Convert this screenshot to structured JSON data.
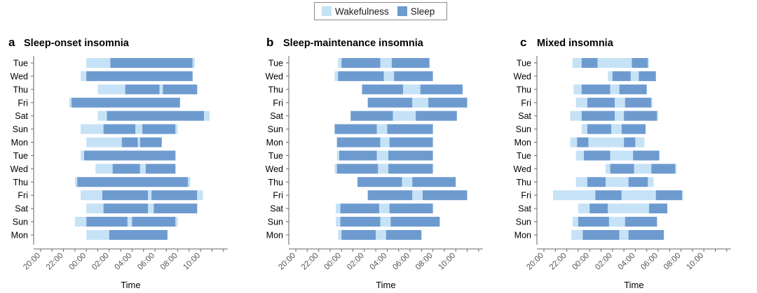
{
  "legend": {
    "items": [
      {
        "label": "Wakefulness",
        "color": "#c6e2f6"
      },
      {
        "label": "Sleep",
        "color": "#6e9bcf"
      }
    ]
  },
  "colors": {
    "wake": "#c6e2f6",
    "sleep": "#6e9bcf",
    "axis": "#666666"
  },
  "chart_data": [
    {
      "type": "gantt",
      "letter": "a",
      "title": "Sleep-onset insomnia",
      "xlabel": "Time",
      "days": [
        "Tue",
        "Wed",
        "Thu",
        "Fri",
        "Sat",
        "Sun",
        "Mon",
        "Tue",
        "Wed",
        "Thu",
        "Fri",
        "Sat",
        "Sun",
        "Mon"
      ],
      "xticks": [
        "20:00",
        "22:00",
        "00:00",
        "02:00",
        "04:00",
        "06:00",
        "08:00",
        "10:00"
      ],
      "xrange_hours": [
        -4,
        12
      ],
      "rows": [
        [
          [
            "w",
            0.0,
            2.1
          ],
          [
            "s",
            2.1,
            9.3
          ],
          [
            "w",
            9.3,
            9.5
          ]
        ],
        [
          [
            "w",
            -0.5,
            0.0
          ],
          [
            "s",
            0.0,
            9.3
          ]
        ],
        [
          [
            "w",
            1.0,
            3.4
          ],
          [
            "s",
            3.4,
            6.4
          ],
          [
            "w",
            6.4,
            6.7
          ],
          [
            "s",
            6.7,
            9.7
          ]
        ],
        [
          [
            "w",
            -1.5,
            -1.3
          ],
          [
            "s",
            -1.3,
            8.2
          ]
        ],
        [
          [
            "w",
            1.0,
            1.8
          ],
          [
            "s",
            1.8,
            10.3
          ],
          [
            "w",
            10.3,
            10.8
          ]
        ],
        [
          [
            "w",
            -0.5,
            1.5
          ],
          [
            "s",
            1.5,
            4.3
          ],
          [
            "w",
            4.3,
            4.9
          ],
          [
            "s",
            4.9,
            7.8
          ],
          [
            "w",
            7.8,
            8.0
          ]
        ],
        [
          [
            "w",
            0.0,
            3.1
          ],
          [
            "s",
            3.1,
            4.5
          ],
          [
            "w",
            4.5,
            4.7
          ],
          [
            "s",
            4.7,
            6.6
          ]
        ],
        [
          [
            "w",
            -0.5,
            -0.2
          ],
          [
            "s",
            -0.2,
            7.8
          ]
        ],
        [
          [
            "w",
            0.8,
            2.3
          ],
          [
            "s",
            2.3,
            4.7
          ],
          [
            "w",
            4.7,
            5.2
          ],
          [
            "s",
            5.2,
            7.8
          ]
        ],
        [
          [
            "w",
            -1.0,
            -0.8
          ],
          [
            "s",
            -0.8,
            8.9
          ],
          [
            "w",
            8.9,
            9.1
          ]
        ],
        [
          [
            "w",
            -0.5,
            1.4
          ],
          [
            "s",
            1.4,
            5.4
          ],
          [
            "w",
            5.4,
            5.7
          ],
          [
            "s",
            5.7,
            9.7
          ],
          [
            "w",
            9.7,
            10.2
          ]
        ],
        [
          [
            "w",
            0.0,
            1.5
          ],
          [
            "s",
            1.5,
            5.4
          ],
          [
            "w",
            5.4,
            5.9
          ],
          [
            "s",
            5.9,
            9.7
          ]
        ],
        [
          [
            "w",
            -1.0,
            0.0
          ],
          [
            "s",
            0.0,
            3.6
          ],
          [
            "w",
            3.6,
            4.0
          ],
          [
            "s",
            4.0,
            7.8
          ],
          [
            "w",
            7.8,
            8.0
          ]
        ],
        [
          [
            "w",
            0.0,
            2.0
          ],
          [
            "s",
            2.0,
            7.1
          ]
        ]
      ]
    },
    {
      "type": "gantt",
      "letter": "b",
      "title": "Sleep-maintenance insomnia",
      "xlabel": "Time",
      "days": [
        "Tue",
        "Wed",
        "Thu",
        "Fri",
        "Sat",
        "Sun",
        "Mon",
        "Tue",
        "Wed",
        "Thu",
        "Fri",
        "Sat",
        "Sun",
        "Mon"
      ],
      "xticks": [
        "20:00",
        "22:00",
        "00:00",
        "02:00",
        "04:00",
        "06:00",
        "08:00",
        "10:00"
      ],
      "xrange_hours": [
        -4,
        12
      ],
      "rows": [
        [
          [
            "w",
            -0.3,
            0.0
          ],
          [
            "s",
            0.0,
            3.4
          ],
          [
            "w",
            3.4,
            4.4
          ],
          [
            "s",
            4.4,
            7.7
          ]
        ],
        [
          [
            "w",
            -0.6,
            -0.3
          ],
          [
            "s",
            -0.3,
            3.7
          ],
          [
            "w",
            3.7,
            4.6
          ],
          [
            "s",
            4.6,
            8.0
          ]
        ],
        [
          [
            "s",
            1.8,
            5.4
          ],
          [
            "w",
            5.4,
            6.9
          ],
          [
            "s",
            6.9,
            10.6
          ]
        ],
        [
          [
            "s",
            2.3,
            6.2
          ],
          [
            "w",
            6.2,
            7.6
          ],
          [
            "s",
            7.6,
            11.0
          ]
        ],
        [
          [
            "s",
            0.8,
            4.5
          ],
          [
            "w",
            4.5,
            6.5
          ],
          [
            "s",
            6.5,
            10.1
          ]
        ],
        [
          [
            "s",
            -0.6,
            3.1
          ],
          [
            "w",
            3.1,
            4.0
          ],
          [
            "s",
            4.0,
            8.0
          ]
        ],
        [
          [
            "s",
            -0.4,
            3.4
          ],
          [
            "w",
            3.4,
            4.2
          ],
          [
            "s",
            4.2,
            8.0
          ]
        ],
        [
          [
            "w",
            -0.4,
            -0.2
          ],
          [
            "s",
            -0.2,
            3.1
          ],
          [
            "w",
            3.1,
            4.1
          ],
          [
            "s",
            4.1,
            8.0
          ]
        ],
        [
          [
            "w",
            -0.6,
            -0.4
          ],
          [
            "s",
            -0.4,
            3.2
          ],
          [
            "w",
            3.2,
            4.1
          ],
          [
            "s",
            4.1,
            8.0
          ]
        ],
        [
          [
            "s",
            1.4,
            5.3
          ],
          [
            "w",
            5.3,
            6.2
          ],
          [
            "s",
            6.2,
            10.0
          ]
        ],
        [
          [
            "s",
            2.3,
            6.2
          ],
          [
            "w",
            6.2,
            7.1
          ],
          [
            "s",
            7.1,
            11.0
          ]
        ],
        [
          [
            "w",
            -0.5,
            -0.1
          ],
          [
            "s",
            -0.1,
            3.3
          ],
          [
            "w",
            3.3,
            4.2
          ],
          [
            "s",
            4.2,
            8.0
          ]
        ],
        [
          [
            "w",
            -0.5,
            -0.1
          ],
          [
            "s",
            -0.1,
            3.4
          ],
          [
            "w",
            3.4,
            4.3
          ],
          [
            "s",
            4.3,
            8.6
          ]
        ],
        [
          [
            "w",
            -0.3,
            0.0
          ],
          [
            "s",
            0.0,
            3.0
          ],
          [
            "w",
            3.0,
            3.9
          ],
          [
            "s",
            3.9,
            7.0
          ]
        ]
      ]
    },
    {
      "type": "gantt",
      "letter": "c",
      "title": "Mixed insomnia",
      "xlabel": "Time",
      "days": [
        "Tue",
        "Wed",
        "Thu",
        "Fri",
        "Sat",
        "Sun",
        "Mon",
        "Tue",
        "Wed",
        "Thu",
        "Fri",
        "Sat",
        "Sun",
        "Mon"
      ],
      "xticks": [
        "20:00",
        "22:00",
        "00:00",
        "02:00",
        "04:00",
        "06:00",
        "08:00",
        "10:00"
      ],
      "xrange_hours": [
        -4,
        12
      ],
      "rows": [
        [
          [
            "w",
            -1.5,
            -0.7
          ],
          [
            "s",
            -0.7,
            0.7
          ],
          [
            "w",
            0.7,
            3.7
          ],
          [
            "s",
            3.7,
            5.1
          ],
          [
            "w",
            5.1,
            5.2
          ]
        ],
        [
          [
            "w",
            1.6,
            2.0
          ],
          [
            "s",
            2.0,
            3.6
          ],
          [
            "w",
            3.6,
            4.3
          ],
          [
            "s",
            4.3,
            5.8
          ]
        ],
        [
          [
            "w",
            -1.4,
            -0.7
          ],
          [
            "s",
            -0.7,
            1.8
          ],
          [
            "w",
            1.8,
            2.6
          ],
          [
            "s",
            2.6,
            5.0
          ]
        ],
        [
          [
            "w",
            -1.2,
            -0.2
          ],
          [
            "s",
            -0.2,
            2.2
          ],
          [
            "w",
            2.2,
            3.1
          ],
          [
            "s",
            3.1,
            5.4
          ],
          [
            "w",
            5.4,
            5.5
          ]
        ],
        [
          [
            "w",
            -1.7,
            -0.7
          ],
          [
            "s",
            -0.7,
            2.2
          ],
          [
            "w",
            2.2,
            3.0
          ],
          [
            "s",
            3.0,
            5.9
          ],
          [
            "w",
            5.9,
            6.0
          ]
        ],
        [
          [
            "w",
            -0.7,
            -0.2
          ],
          [
            "s",
            -0.2,
            1.9
          ],
          [
            "w",
            1.9,
            2.8
          ],
          [
            "s",
            2.8,
            4.9
          ]
        ],
        [
          [
            "w",
            -1.7,
            -1.1
          ],
          [
            "s",
            -1.1,
            -0.1
          ],
          [
            "w",
            -0.1,
            3.0
          ],
          [
            "s",
            3.0,
            4.0
          ],
          [
            "w",
            4.0,
            4.8
          ]
        ],
        [
          [
            "w",
            -1.2,
            -0.5
          ],
          [
            "s",
            -0.5,
            1.8
          ],
          [
            "w",
            1.8,
            3.8
          ],
          [
            "s",
            3.8,
            6.1
          ]
        ],
        [
          [
            "w",
            1.4,
            1.8
          ],
          [
            "s",
            1.8,
            3.9
          ],
          [
            "w",
            3.9,
            5.4
          ],
          [
            "s",
            5.4,
            7.5
          ],
          [
            "w",
            7.5,
            7.6
          ]
        ],
        [
          [
            "w",
            -1.2,
            -0.2
          ],
          [
            "s",
            -0.2,
            1.4
          ],
          [
            "w",
            1.4,
            3.4
          ],
          [
            "s",
            3.4,
            5.1
          ],
          [
            "w",
            5.1,
            5.6
          ]
        ],
        [
          [
            "w",
            -3.2,
            0.5
          ],
          [
            "s",
            0.5,
            2.8
          ],
          [
            "w",
            2.8,
            5.8
          ],
          [
            "s",
            5.8,
            8.1
          ],
          [
            "w",
            8.1,
            8.2
          ]
        ],
        [
          [
            "w",
            -1.0,
            0.0
          ],
          [
            "s",
            0.0,
            1.6
          ],
          [
            "w",
            1.6,
            5.2
          ],
          [
            "s",
            5.2,
            6.8
          ]
        ],
        [
          [
            "w",
            -1.5,
            -1.0
          ],
          [
            "s",
            -1.0,
            1.7
          ],
          [
            "w",
            1.7,
            3.1
          ],
          [
            "s",
            3.1,
            5.9
          ]
        ],
        [
          [
            "w",
            -1.6,
            -0.6
          ],
          [
            "s",
            -0.6,
            2.6
          ],
          [
            "w",
            2.6,
            3.4
          ],
          [
            "s",
            3.4,
            6.5
          ]
        ]
      ]
    }
  ]
}
